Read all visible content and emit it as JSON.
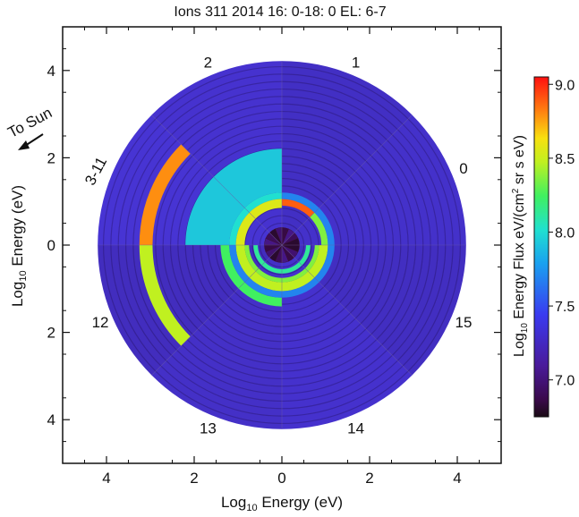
{
  "chart_data": {
    "type": "polar-heatmap",
    "title": "Ions 311 2014 16: 0-18: 0 EL: 6-7",
    "xlabel_prefix": "Log",
    "xlabel_sub": "10",
    "xlabel_suffix": " Energy (eV)",
    "ylabel_prefix": "Log",
    "ylabel_sub": "10",
    "ylabel_suffix": " Energy (eV)",
    "xlim": [
      -5,
      5
    ],
    "ylim": [
      -5,
      5
    ],
    "x_ticks": [
      {
        "value": -4,
        "label": "4"
      },
      {
        "value": -2,
        "label": "2"
      },
      {
        "value": 0,
        "label": "0"
      },
      {
        "value": 2,
        "label": "2"
      },
      {
        "value": 4,
        "label": "4"
      }
    ],
    "y_ticks": [
      {
        "value": 4,
        "label": "4"
      },
      {
        "value": 2,
        "label": "2"
      },
      {
        "value": 0,
        "label": "0"
      },
      {
        "value": -2,
        "label": "2"
      },
      {
        "value": -4,
        "label": "4"
      }
    ],
    "radial_max": 4.2,
    "sun_label": "To Sun",
    "sector_labels": [
      {
        "label": "1",
        "angle_deg": 68
      },
      {
        "label": "0",
        "angle_deg": 23
      },
      {
        "label": "15",
        "angle_deg": -23
      },
      {
        "label": "14",
        "angle_deg": -68
      },
      {
        "label": "13",
        "angle_deg": -112
      },
      {
        "label": "12",
        "angle_deg": -157
      },
      {
        "label": "3-11",
        "angle_deg": 157
      },
      {
        "label": "2",
        "angle_deg": 112
      }
    ],
    "background_level": 7.15,
    "center_level": 6.8,
    "arcs": [
      {
        "r_inner": 0.9,
        "r_outer": 1.05,
        "theta_start": 45,
        "theta_end": 90,
        "level": 8.7
      },
      {
        "r_inner": 0.9,
        "r_outer": 1.05,
        "theta_start": 0,
        "theta_end": 45,
        "level": 7.9
      },
      {
        "r_inner": 1.05,
        "r_outer": 1.2,
        "theta_start": 0,
        "theta_end": 90,
        "level": 7.4
      },
      {
        "r_inner": 1.05,
        "r_outer": 1.2,
        "theta_start": 90,
        "theta_end": 180,
        "level": 7.6
      },
      {
        "r_inner": 0.85,
        "r_outer": 1.05,
        "theta_start": 90,
        "theta_end": 180,
        "level": 8.1
      },
      {
        "r_inner": 1.2,
        "r_outer": 2.2,
        "theta_start": 90,
        "theta_end": 180,
        "level": 7.55
      },
      {
        "r_inner": 2.95,
        "r_outer": 3.25,
        "theta_start": 135,
        "theta_end": 180,
        "level": 8.5
      },
      {
        "r_inner": 0.55,
        "r_outer": 0.65,
        "theta_start": 180,
        "theta_end": 360,
        "level": 7.7
      },
      {
        "r_inner": 1.2,
        "r_outer": 1.4,
        "theta_start": 180,
        "theta_end": 270,
        "level": 7.8
      },
      {
        "r_inner": 2.95,
        "r_outer": 3.25,
        "theta_start": 180,
        "theta_end": 225,
        "level": 8.0
      },
      {
        "r_inner": 0.75,
        "r_outer": 0.85,
        "theta_start": 180,
        "theta_end": 360,
        "level": 7.9
      },
      {
        "r_inner": 0.85,
        "r_outer": 1.05,
        "theta_start": 180,
        "theta_end": 360,
        "level": 8.0
      },
      {
        "r_inner": 1.05,
        "r_outer": 1.2,
        "theta_start": 180,
        "theta_end": 360,
        "level": 7.4
      }
    ],
    "colorbar": {
      "label_prefix": "Log",
      "label_sub": "10",
      "label_suffix": " Energy Flux eV/(cm",
      "label_sup": "2",
      "label_end": " sr s eV)",
      "min": 6.75,
      "max": 9.05,
      "ticks": [
        "9.0",
        "8.5",
        "8.0",
        "7.5",
        "7.0"
      ],
      "tick_values": [
        9.0,
        8.5,
        8.0,
        7.5,
        7.0
      ]
    },
    "grid": false,
    "legend": "none"
  }
}
